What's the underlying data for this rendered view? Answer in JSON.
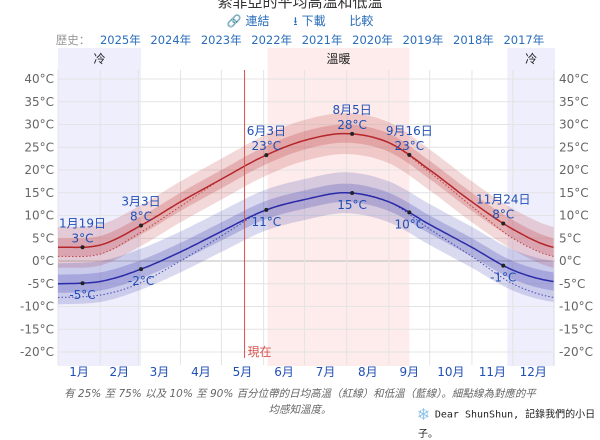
{
  "header": {
    "title": "索菲亞的平均高溫和低溫",
    "link_label": "連結",
    "download_label": "下載",
    "compare_label": "比較",
    "history_label": "歷史：",
    "history_years": [
      "2025年",
      "2024年",
      "2023年",
      "2022年",
      "2021年",
      "2020年",
      "2019年",
      "2018年",
      "2017年"
    ]
  },
  "chart_data": {
    "type": "line",
    "y_ticks": [
      40,
      35,
      30,
      25,
      20,
      15,
      10,
      5,
      0,
      -5,
      -10,
      -15,
      -20
    ],
    "y_tick_suffix": "°C",
    "ylim": [
      -20,
      40
    ],
    "x_tick_labels": [
      "1月",
      "2月",
      "3月",
      "4月",
      "5月",
      "6月",
      "7月",
      "8月",
      "9月",
      "10月",
      "11月",
      "12月"
    ],
    "x_dates": [
      "01-01",
      "02-01",
      "03-01",
      "04-01",
      "05-01",
      "06-01",
      "07-01",
      "08-01",
      "09-01",
      "10-01",
      "11-01",
      "12-01",
      "12-31"
    ],
    "series": [
      {
        "key": "high",
        "color": "#b5262b",
        "values": [
          3,
          3.5,
          7.5,
          13,
          18,
          23,
          26.5,
          28,
          26,
          20,
          13,
          7,
          3
        ]
      },
      {
        "key": "low",
        "color": "#2b2ba8",
        "values": [
          -5,
          -4.5,
          -2,
          2,
          6.5,
          11,
          13.5,
          15,
          13,
          8,
          3,
          -2,
          -4.5
        ]
      },
      {
        "key": "high_feels_like",
        "color": "#b5262b",
        "style": "dotted",
        "values": [
          1,
          1.5,
          6,
          12,
          18,
          23,
          26.5,
          28,
          26,
          19.5,
          12,
          5,
          1
        ]
      },
      {
        "key": "low_feels_like",
        "color": "#2b2ba8",
        "style": "dotted",
        "values": [
          -8,
          -7.5,
          -5,
          0,
          5.5,
          11,
          13.5,
          15,
          13,
          7,
          1,
          -5,
          -8
        ]
      }
    ],
    "bands_halfwidth": {
      "p25_p75": 2,
      "p10_p90": 4.5
    },
    "annotations": [
      {
        "date": "1月19日",
        "high": "3°C",
        "low": "-5°C"
      },
      {
        "date": "3月3日",
        "high": "8°C",
        "low": "-2°C"
      },
      {
        "date": "6月3日",
        "high": "23°C",
        "low": "11°C"
      },
      {
        "date": "8月5日",
        "high": "28°C",
        "low": "15°C"
      },
      {
        "date": "9月16日",
        "high": "23°C",
        "low": "10°C"
      },
      {
        "date": "11月24日",
        "high": "8°C",
        "low": "-1°C"
      }
    ],
    "seasons": [
      {
        "label": "冷",
        "color": "#eeeefc"
      },
      {
        "label": "溫暖",
        "color": "#fdeceb"
      },
      {
        "label": "冷",
        "color": "#eeeefc"
      }
    ],
    "now_label": "現在",
    "now_color": "#d9534f"
  },
  "caption": "有 25% 至 75% 以及 10% 至 90% 百分位帶的日均高溫（紅線）和低溫（藍線）。細點線為對應的平均感知溫度。",
  "signature": "Dear ShunShun, 記錄我們的小日子。"
}
